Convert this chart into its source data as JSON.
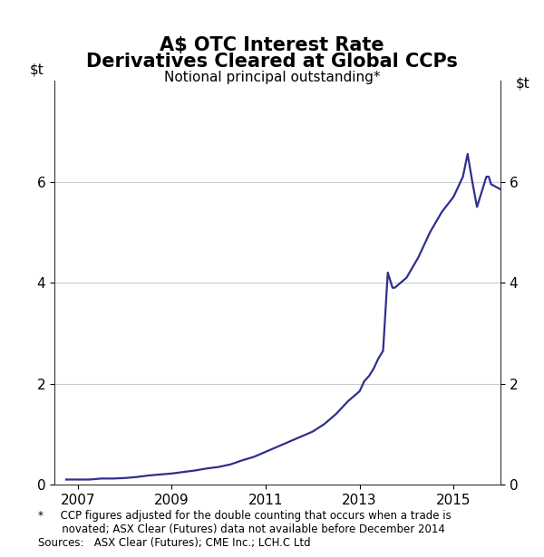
{
  "title_line1": "A$ OTC Interest Rate",
  "title_line2": "Derivatives Cleared at Global CCPs",
  "subtitle": "Notional principal outstanding*",
  "line_color": "#2f2f8f",
  "line_width": 1.6,
  "background_color": "#ffffff",
  "grid_color": "#cccccc",
  "ylim": [
    0,
    8
  ],
  "yticks": [
    0,
    2,
    4,
    6
  ],
  "xlim_start": 2006.5,
  "xlim_end": 2016.0,
  "xticks": [
    2007,
    2009,
    2011,
    2013,
    2015
  ],
  "footnote1": "*     CCP figures adjusted for the double counting that occurs when a trade is",
  "footnote2": "       novated; ASX Clear (Futures) data not available before December 2014",
  "footnote3": "Sources:   ASX Clear (Futures); CME Inc.; LCH.C Ltd",
  "data_x": [
    2006.75,
    2007.0,
    2007.25,
    2007.5,
    2007.75,
    2008.0,
    2008.25,
    2008.5,
    2008.75,
    2009.0,
    2009.25,
    2009.5,
    2009.75,
    2010.0,
    2010.25,
    2010.5,
    2010.75,
    2011.0,
    2011.25,
    2011.5,
    2011.75,
    2012.0,
    2012.25,
    2012.5,
    2012.75,
    2013.0,
    2013.1,
    2013.2,
    2013.3,
    2013.4,
    2013.5,
    2013.6,
    2013.7,
    2013.75,
    2014.0,
    2014.25,
    2014.5,
    2014.75,
    2015.0,
    2015.1,
    2015.2,
    2015.3,
    2015.4,
    2015.5,
    2015.6,
    2015.7,
    2015.75,
    2015.8,
    2015.9,
    2016.0
  ],
  "data_y": [
    0.1,
    0.1,
    0.1,
    0.12,
    0.12,
    0.13,
    0.15,
    0.18,
    0.2,
    0.22,
    0.25,
    0.28,
    0.32,
    0.35,
    0.4,
    0.48,
    0.55,
    0.65,
    0.75,
    0.85,
    0.95,
    1.05,
    1.2,
    1.4,
    1.65,
    1.85,
    2.05,
    2.15,
    2.3,
    2.5,
    2.65,
    4.2,
    3.9,
    3.9,
    4.1,
    4.5,
    5.0,
    5.4,
    5.7,
    5.9,
    6.1,
    6.55,
    6.0,
    5.5,
    5.8,
    6.1,
    6.1,
    5.95,
    5.9,
    5.85
  ]
}
